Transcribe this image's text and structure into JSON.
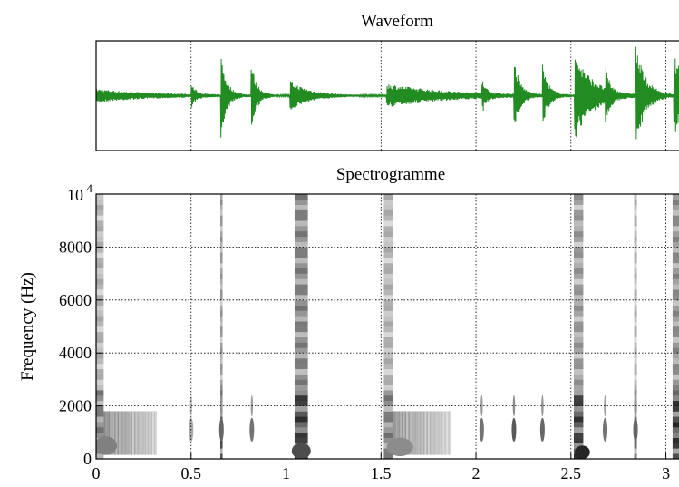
{
  "chart_data": [
    {
      "type": "line",
      "title": "Waveform",
      "series": [
        {
          "color": "#228B22"
        }
      ],
      "xlim": [
        0,
        3.15
      ],
      "grid": "vertical dotted at x ticks",
      "events": [
        {
          "t": 0.0,
          "amp": 0.12,
          "decay": 0.3
        },
        {
          "t": 0.5,
          "amp": 0.22,
          "decay": 0.025
        },
        {
          "t": 0.655,
          "amp": 0.85,
          "decay": 0.03
        },
        {
          "t": 0.815,
          "amp": 0.65,
          "decay": 0.03
        },
        {
          "t": 1.02,
          "amp": 0.28,
          "decay": 0.1
        },
        {
          "t": 1.53,
          "amp": 0.22,
          "decay": 0.32
        },
        {
          "t": 2.03,
          "amp": 0.35,
          "decay": 0.02
        },
        {
          "t": 2.2,
          "amp": 0.72,
          "decay": 0.03
        },
        {
          "t": 2.35,
          "amp": 0.6,
          "decay": 0.03
        },
        {
          "t": 2.52,
          "amp": 0.85,
          "decay": 0.09
        },
        {
          "t": 2.68,
          "amp": 0.5,
          "decay": 0.02
        },
        {
          "t": 2.84,
          "amp": 0.98,
          "decay": 0.05
        },
        {
          "t": 3.04,
          "amp": 0.75,
          "decay": 0.09
        }
      ]
    },
    {
      "type": "heatmap",
      "title": "Spectrogramme",
      "ylabel": "Frequency (Hz)",
      "xlim": [
        0,
        3.15
      ],
      "ylim": [
        0,
        10000
      ],
      "xticks": [
        "0",
        "0.5",
        "1",
        "1.5",
        "2",
        "2.5",
        "3"
      ],
      "xtick_values": [
        0,
        0.5,
        1,
        1.5,
        2,
        2.5,
        3
      ],
      "yticks": [
        "0",
        "2000",
        "4000",
        "6000",
        "8000"
      ],
      "ytick_values": [
        0,
        2000,
        4000,
        6000,
        8000
      ],
      "ytop_label": {
        "base": "10",
        "exp": "4"
      },
      "ytop_value": 10000,
      "grid": "dotted",
      "colormap": "gray_r"
    }
  ]
}
